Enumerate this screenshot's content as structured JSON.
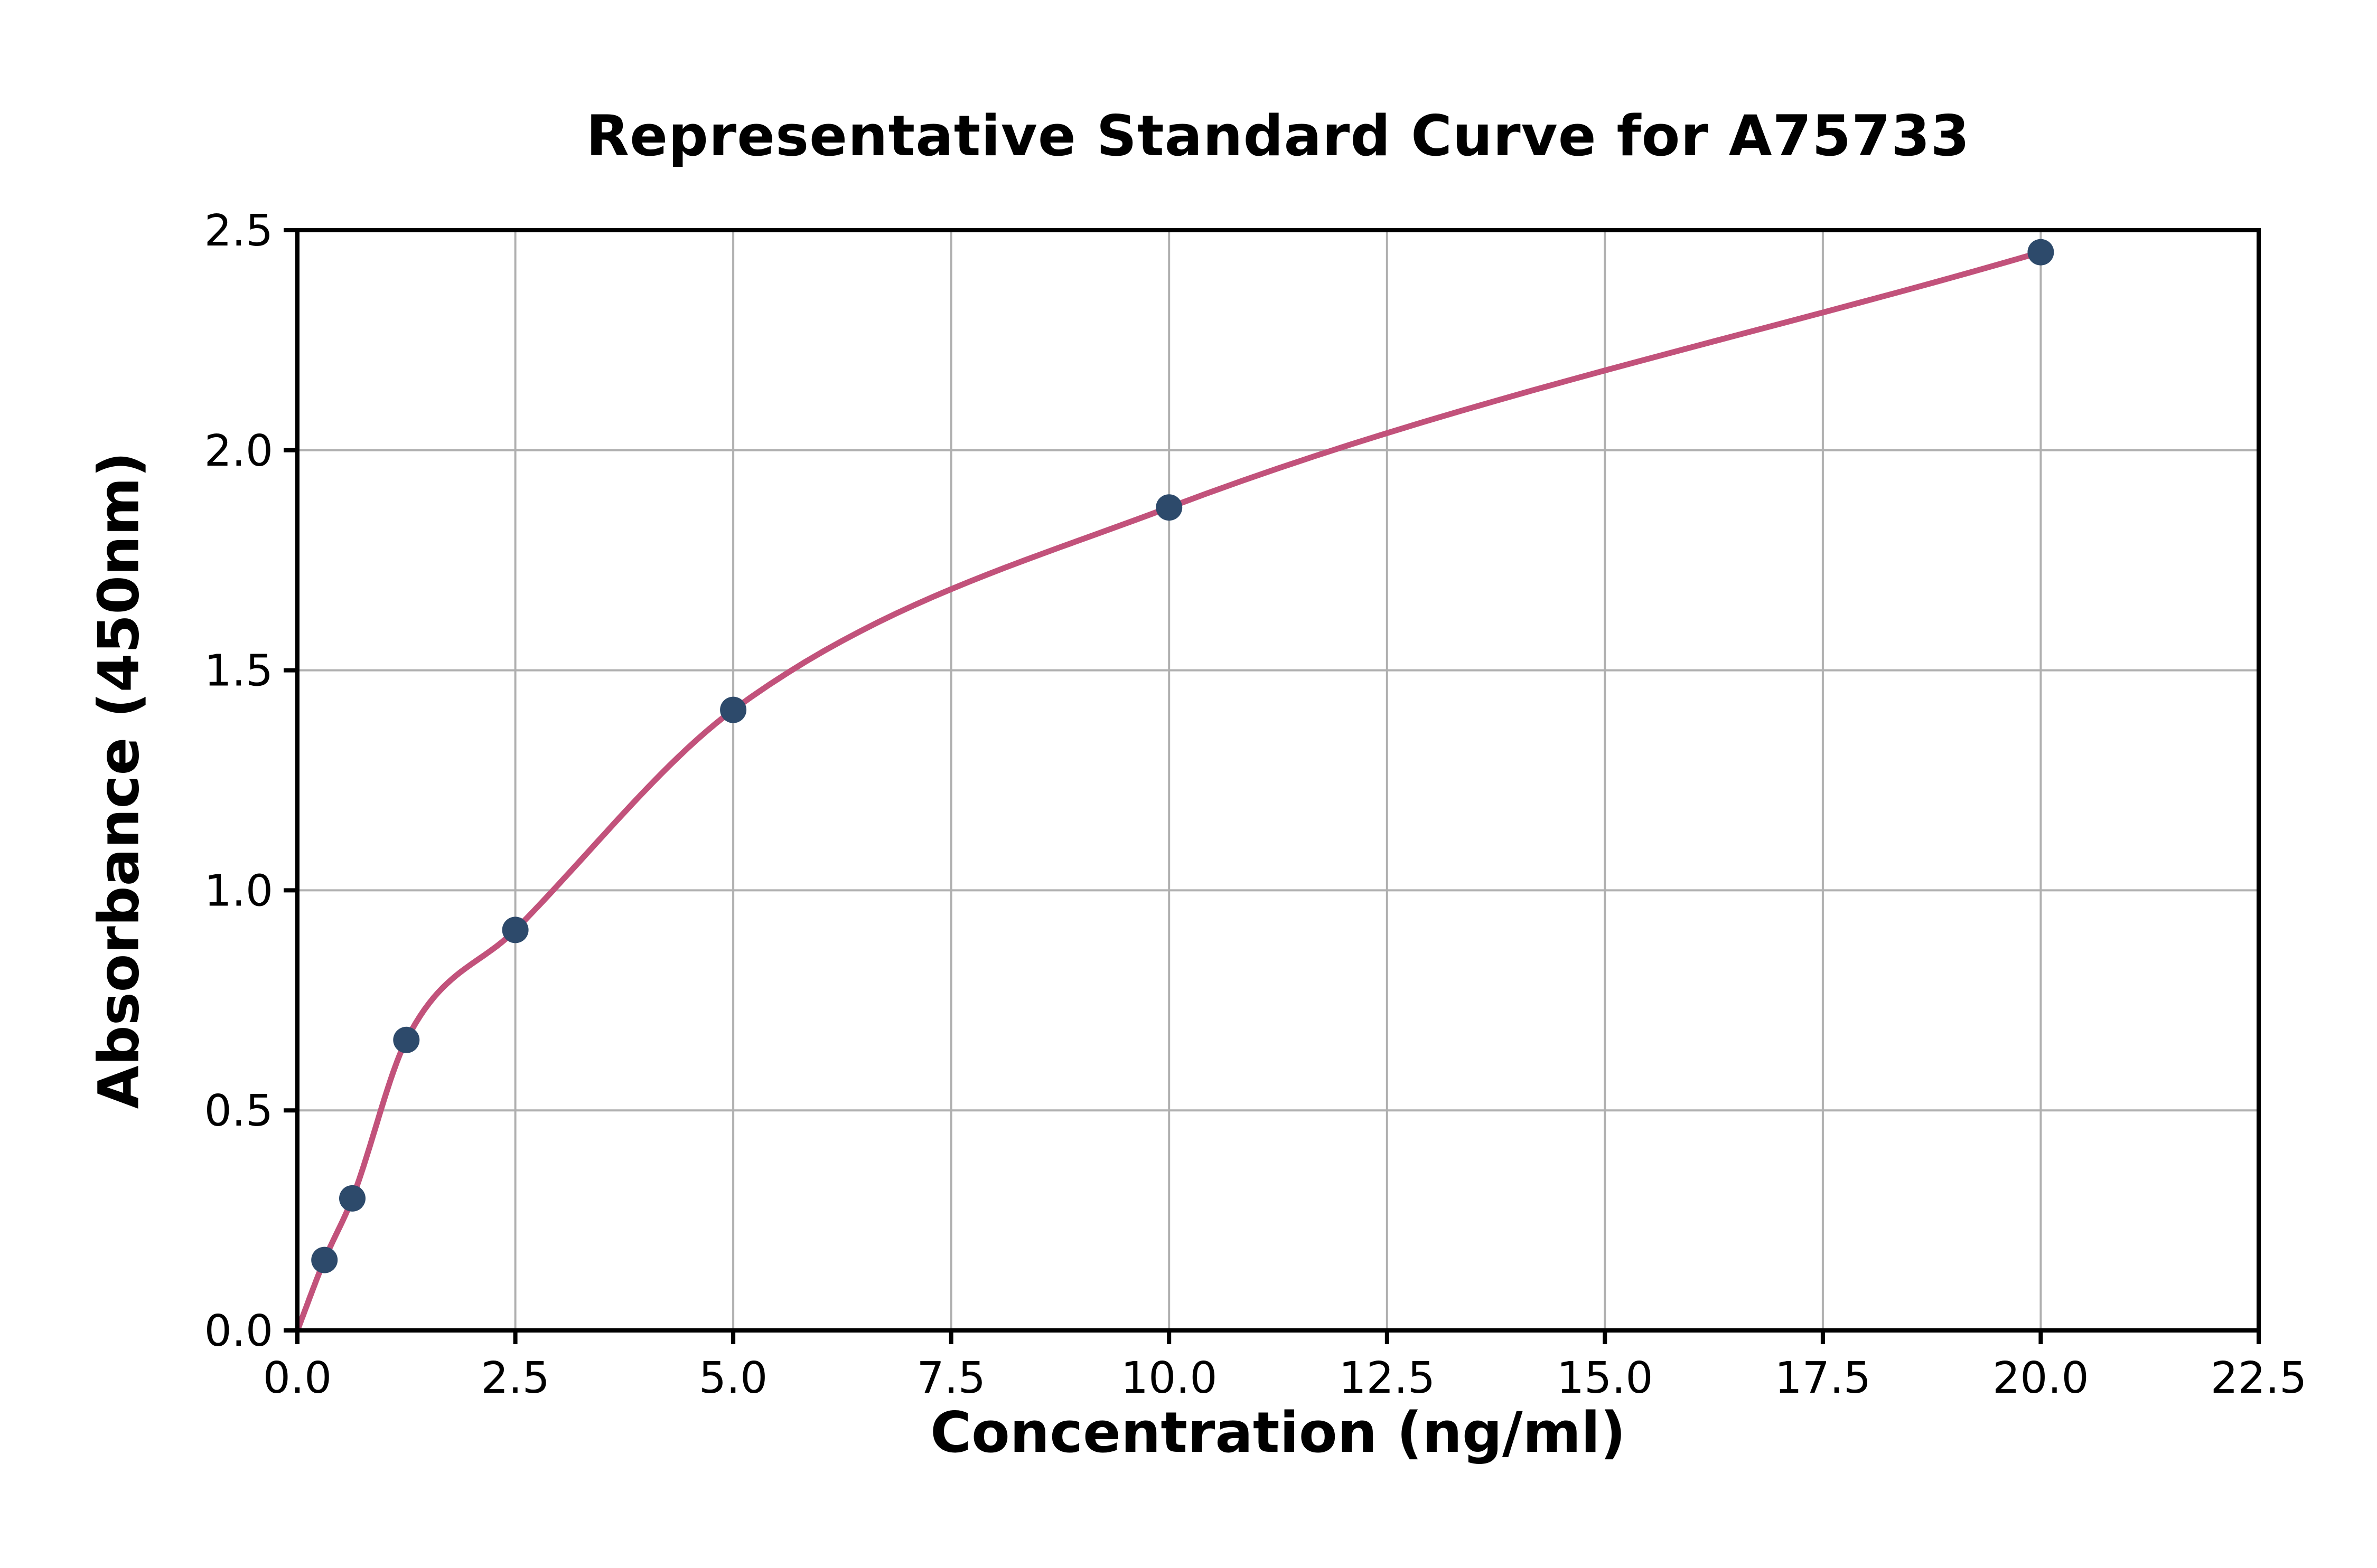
{
  "chart_data": {
    "type": "scatter",
    "title": "Representative Standard Curve for A75733",
    "xlabel": "Concentration (ng/ml)",
    "ylabel": "Absorbance (450nm)",
    "xlim": [
      0,
      22.5
    ],
    "ylim": [
      0,
      2.5
    ],
    "x_ticks": [
      0,
      2.5,
      5,
      7.5,
      10,
      12.5,
      15,
      17.5,
      20,
      22.5
    ],
    "x_tick_labels": [
      "0.0",
      "2.5",
      "5.0",
      "7.5",
      "10.0",
      "12.5",
      "15.0",
      "17.5",
      "20.0",
      "22.5"
    ],
    "y_ticks": [
      0,
      0.5,
      1,
      1.5,
      2,
      2.5
    ],
    "y_tick_labels": [
      "0.0",
      "0.5",
      "1.0",
      "1.5",
      "2.0",
      "2.5"
    ],
    "grid": true,
    "grid_color": "#b0b0b0",
    "legend": false,
    "series": [
      {
        "name": "standard-points",
        "type": "scatter",
        "color": "#2d4a6b",
        "x": [
          0.31,
          0.63,
          1.25,
          2.5,
          5,
          10,
          20
        ],
        "y": [
          0.16,
          0.3,
          0.66,
          0.91,
          1.41,
          1.87,
          2.45
        ]
      },
      {
        "name": "fit-curve",
        "type": "line",
        "color": "#c2527b",
        "passes_through": [
          [
            0,
            0
          ],
          [
            0.31,
            0.16
          ],
          [
            0.63,
            0.3
          ],
          [
            1.25,
            0.66
          ],
          [
            2.5,
            0.91
          ],
          [
            5,
            1.41
          ],
          [
            10,
            1.87
          ],
          [
            20,
            2.45
          ]
        ]
      }
    ]
  }
}
